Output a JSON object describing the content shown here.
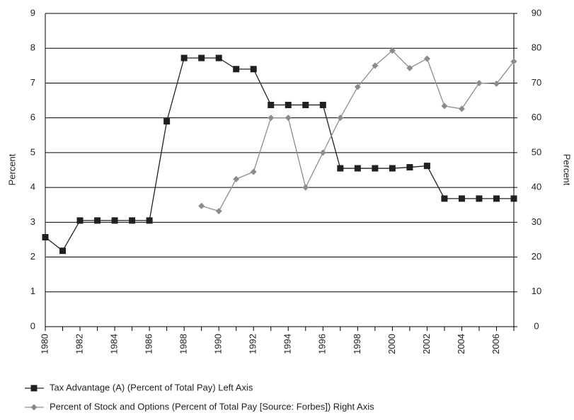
{
  "chart_data": {
    "type": "line",
    "x": [
      1980,
      1981,
      1982,
      1983,
      1984,
      1985,
      1986,
      1987,
      1988,
      1989,
      1990,
      1991,
      1992,
      1993,
      1994,
      1995,
      1996,
      1997,
      1998,
      1999,
      2000,
      2001,
      2002,
      2003,
      2004,
      2005,
      2006,
      2007
    ],
    "xlim": [
      1980,
      2007
    ],
    "xticks": [
      1980,
      1982,
      1984,
      1986,
      1988,
      1990,
      1992,
      1994,
      1996,
      1998,
      2000,
      2002,
      2004,
      2006
    ],
    "ylim": [
      0,
      9
    ],
    "yticks": [
      0,
      1,
      2,
      3,
      4,
      5,
      6,
      7,
      8,
      9
    ],
    "y2lim": [
      0,
      90
    ],
    "y2ticks": [
      0,
      10,
      20,
      30,
      40,
      50,
      60,
      70,
      80,
      90
    ],
    "ylabel": "Percent",
    "y2label": "Percent",
    "grid": true,
    "series": [
      {
        "name": "Tax Advantage (A) (Percent of Total Pay) Left Axis",
        "color": "#231f20",
        "marker": "square",
        "values": [
          2.57,
          2.18,
          3.05,
          3.05,
          3.05,
          3.05,
          3.05,
          5.9,
          7.72,
          7.72,
          7.72,
          7.4,
          7.4,
          6.37,
          6.37,
          6.37,
          6.37,
          4.55,
          4.55,
          4.55,
          4.55,
          4.58,
          4.62,
          3.68,
          3.68,
          3.68,
          3.68,
          3.68
        ]
      },
      {
        "name": "Percent of Stock and Options (Percent of Total Pay [Source: Forbes]) Right Axis",
        "color": "#8c8c8c",
        "marker": "diamond",
        "axis": "y2",
        "values": [
          null,
          null,
          null,
          null,
          null,
          null,
          null,
          null,
          null,
          34.7,
          33.2,
          42.4,
          44.5,
          60,
          60,
          40,
          50,
          60,
          68.9,
          75,
          79.3,
          74.3,
          77,
          63.4,
          62.6,
          70,
          69.8,
          76.2
        ]
      }
    ]
  }
}
